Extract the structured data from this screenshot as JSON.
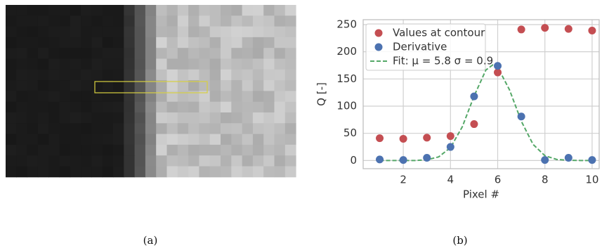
{
  "chart_data": {
    "type": "scatter",
    "xlabel": "Pixel #",
    "ylabel": "Q [-]",
    "xlim": [
      0.3,
      10.3
    ],
    "xticks": [
      2,
      4,
      6,
      8,
      10
    ],
    "ylim": [
      -15,
      259
    ],
    "yticks": [
      0,
      50,
      100,
      150,
      200,
      250
    ],
    "grid": true,
    "legend": "upper left",
    "series": [
      {
        "name": "Values at contour",
        "color": "#c44e52",
        "mode": "markers",
        "x": [
          1,
          2,
          3,
          4,
          5,
          6,
          7,
          8,
          9,
          10
        ],
        "values": [
          41,
          40,
          42,
          45,
          67,
          162,
          241,
          244,
          242,
          239
        ]
      },
      {
        "name": "Derivative",
        "color": "#4c72b0",
        "mode": "markers",
        "x": [
          1,
          2,
          3,
          4,
          5,
          6,
          7,
          8,
          9,
          10
        ],
        "values": [
          2,
          1,
          5,
          25,
          118,
          174,
          81,
          1,
          5,
          1
        ]
      },
      {
        "name": "Fit: μ = 5.8 σ = 0.9",
        "color": "#55a868",
        "mode": "dashed-line",
        "x": [
          1,
          1.5,
          2,
          2.5,
          3,
          3.5,
          4,
          4.5,
          5,
          5.5,
          5.8,
          6,
          6.5,
          7,
          7.5,
          8,
          8.5,
          9,
          9.5,
          10
        ],
        "values": [
          0,
          0,
          0,
          0,
          1.4,
          6.7,
          23.8,
          62,
          118.6,
          166.5,
          176,
          171.7,
          130,
          72.3,
          29.6,
          8.9,
          2,
          0.4,
          0.1,
          0
        ]
      }
    ]
  },
  "captions": [
    "(a)",
    "(b)"
  ]
}
